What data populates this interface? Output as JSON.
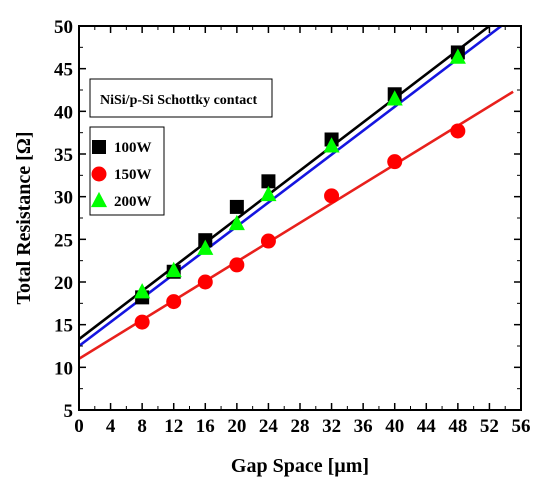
{
  "chart_data": {
    "type": "scatter",
    "xlabel": "Gap Space [µm]",
    "ylabel": "Total Resistance [Ω]",
    "xlim": [
      0,
      56
    ],
    "ylim": [
      5,
      50
    ],
    "xticks": [
      0,
      4,
      8,
      12,
      16,
      20,
      24,
      28,
      32,
      36,
      40,
      44,
      48,
      52,
      56
    ],
    "yticks": [
      5,
      10,
      15,
      20,
      25,
      30,
      35,
      40,
      45,
      50
    ],
    "grid": false,
    "legend_position": "upper-left",
    "annotation": "NiSi/p-Si Schottky contact",
    "series": [
      {
        "name": "100W",
        "marker": "square",
        "color": "#000000",
        "x": [
          8,
          12,
          16,
          20,
          24,
          32,
          40,
          48
        ],
        "y": [
          18.2,
          21.2,
          24.9,
          28.8,
          31.8,
          36.7,
          42.0,
          46.9
        ],
        "fit": {
          "x": [
            0,
            52
          ],
          "y": [
            13.3,
            50.0
          ]
        }
      },
      {
        "name": "150W",
        "marker": "circle",
        "color": "#ff0000",
        "x": [
          8,
          12,
          16,
          20,
          24,
          32,
          40,
          48
        ],
        "y": [
          15.3,
          17.7,
          20.0,
          22.0,
          24.8,
          30.1,
          34.1,
          37.7
        ],
        "fit": {
          "x": [
            0,
            55
          ],
          "y": [
            11.0,
            42.3
          ]
        }
      },
      {
        "name": "200W",
        "marker": "triangle",
        "color": "#00ff00",
        "x": [
          8,
          12,
          16,
          20,
          24,
          32,
          40,
          48
        ],
        "y": [
          18.8,
          21.3,
          23.9,
          26.8,
          30.2,
          35.9,
          41.4,
          46.3
        ],
        "fit": {
          "x": [
            0,
            53.5
          ],
          "y": [
            12.5,
            50.0
          ]
        }
      }
    ],
    "fit_line_colors": [
      "#000000",
      "#e8201c",
      "#1515e0"
    ]
  }
}
